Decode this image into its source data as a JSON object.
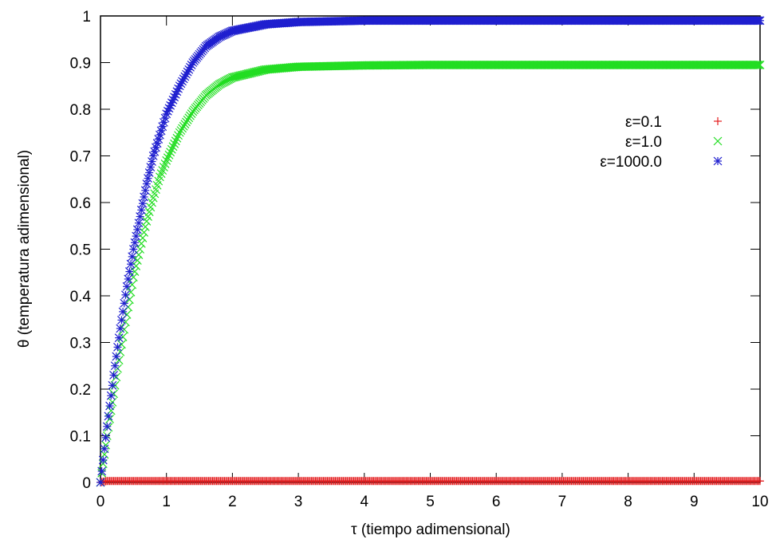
{
  "chart_data": {
    "type": "scatter",
    "title": "",
    "xlabel": "τ (tiempo adimensional)",
    "ylabel": "θ (temperatura adimensional)",
    "xlim": [
      0,
      10
    ],
    "ylim": [
      0,
      1
    ],
    "xticks": [
      "0",
      "1",
      "2",
      "3",
      "4",
      "5",
      "6",
      "7",
      "8",
      "9",
      "10"
    ],
    "yticks": [
      "0",
      "0.1",
      "0.2",
      "0.3",
      "0.4",
      "0.5",
      "0.6",
      "0.7",
      "0.8",
      "0.9",
      "1"
    ],
    "grid": false,
    "legend_position": "top-right",
    "series": [
      {
        "name": "ε=0.1",
        "color": "#e41a1c",
        "marker": "plus",
        "x": [
          0,
          0.05,
          0.1,
          0.2,
          0.5,
          1,
          2,
          3,
          4,
          5,
          6,
          7,
          8,
          9,
          10
        ],
        "y": [
          0,
          0.002,
          0.003,
          0.003,
          0.003,
          0.003,
          0.003,
          0.003,
          0.003,
          0.003,
          0.003,
          0.003,
          0.003,
          0.003,
          0.003
        ]
      },
      {
        "name": "ε=1.0",
        "color": "#22dd22",
        "marker": "cross",
        "x": [
          0,
          0.1,
          0.2,
          0.3,
          0.4,
          0.5,
          0.6,
          0.7,
          0.8,
          0.9,
          1.0,
          1.2,
          1.4,
          1.6,
          1.8,
          2.0,
          2.5,
          3.0,
          4.0,
          5.0,
          6.0,
          7.0,
          8.0,
          9.0,
          10.0
        ],
        "y": [
          0,
          0.1,
          0.19,
          0.28,
          0.36,
          0.44,
          0.5,
          0.56,
          0.61,
          0.655,
          0.69,
          0.75,
          0.795,
          0.83,
          0.853,
          0.868,
          0.885,
          0.891,
          0.894,
          0.895,
          0.895,
          0.895,
          0.895,
          0.895,
          0.895
        ]
      },
      {
        "name": "ε=1000.0",
        "color": "#1f1fcf",
        "marker": "star",
        "x": [
          0,
          0.1,
          0.2,
          0.3,
          0.4,
          0.5,
          0.6,
          0.7,
          0.8,
          0.9,
          1.0,
          1.2,
          1.4,
          1.6,
          1.8,
          2.0,
          2.5,
          3.0,
          4.0,
          5.0,
          6.0,
          7.0,
          8.0,
          9.0,
          10.0
        ],
        "y": [
          0,
          0.12,
          0.23,
          0.33,
          0.42,
          0.5,
          0.57,
          0.64,
          0.7,
          0.745,
          0.79,
          0.85,
          0.9,
          0.935,
          0.955,
          0.968,
          0.982,
          0.987,
          0.99,
          0.99,
          0.99,
          0.99,
          0.99,
          0.99,
          0.99
        ]
      }
    ]
  }
}
